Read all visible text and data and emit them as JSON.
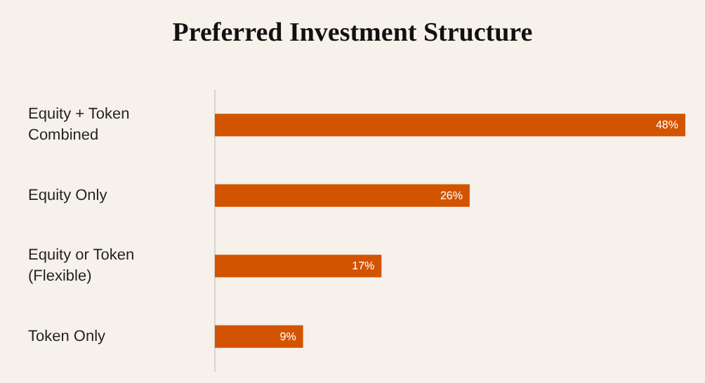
{
  "chart_data": {
    "type": "bar",
    "orientation": "horizontal",
    "title": "Preferred Investment Structure",
    "categories": [
      "Equity + Token Combined",
      "Equity Only",
      "Equity or Token (Flexible)",
      "Token Only"
    ],
    "values": [
      48,
      26,
      17,
      9
    ],
    "value_labels": [
      "48%",
      "26%",
      "17%",
      "9%"
    ],
    "color": "#d35400"
  }
}
